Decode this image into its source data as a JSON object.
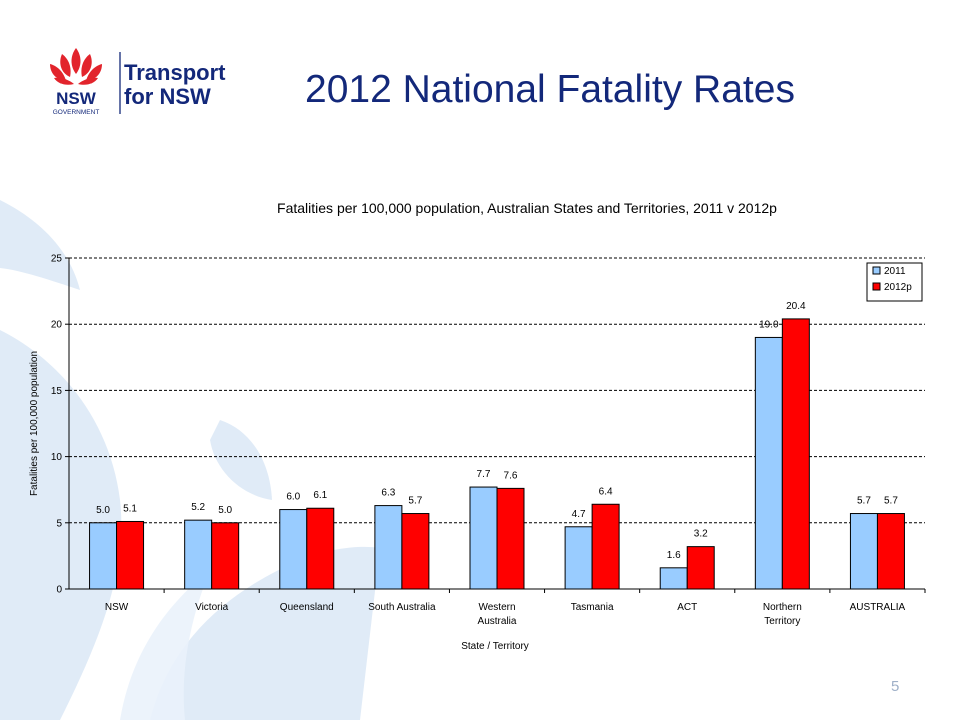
{
  "slide": {
    "title": "2012 National Fatality Rates",
    "page_number": "5"
  },
  "logo": {
    "line1": "Transport",
    "line2": "for NSW",
    "sub1": "NSW",
    "sub2": "GOVERNMENT",
    "colors": {
      "waratah": "#e2242c",
      "text": "#13287a"
    }
  },
  "chart_data": {
    "type": "bar",
    "title": "Fatalities per 100,000 population, Australian States and Territories, 2011 v 2012p",
    "xlabel": "State / Territory",
    "ylabel": "Fatalities per 100,000 population",
    "ylim": [
      0,
      25
    ],
    "yticks": [
      0,
      5,
      10,
      15,
      20,
      25
    ],
    "grid": "dashed horizontal",
    "legend_position": "top-right",
    "categories": [
      "NSW",
      "Victoria",
      "Queensland",
      "South Australia",
      "Western Australia",
      "Tasmania",
      "ACT",
      "Northern Territory",
      "AUSTRALIA"
    ],
    "category_lines": [
      [
        "NSW"
      ],
      [
        "Victoria"
      ],
      [
        "Queensland"
      ],
      [
        "South Australia"
      ],
      [
        "Western",
        "Australia"
      ],
      [
        "Tasmania"
      ],
      [
        "ACT"
      ],
      [
        "Northern",
        "Territory"
      ],
      [
        "AUSTRALIA"
      ]
    ],
    "series": [
      {
        "name": "2011",
        "color": "#99ccff",
        "values": [
          5.0,
          5.2,
          6.0,
          6.3,
          7.7,
          4.7,
          1.6,
          19.0,
          5.7
        ],
        "labels": [
          "5.0",
          "5.2",
          "6.0",
          "6.3",
          "7.7",
          "4.7",
          "1.6",
          "19.0",
          "5.7"
        ]
      },
      {
        "name": "2012p",
        "color": "#ff0000",
        "values": [
          5.1,
          5.0,
          6.1,
          5.7,
          7.6,
          6.4,
          3.2,
          20.4,
          5.7
        ],
        "labels": [
          "5.1",
          "5.0",
          "6.1",
          "5.7",
          "7.6",
          "6.4",
          "3.2",
          "20.4",
          "5.7"
        ]
      }
    ]
  }
}
